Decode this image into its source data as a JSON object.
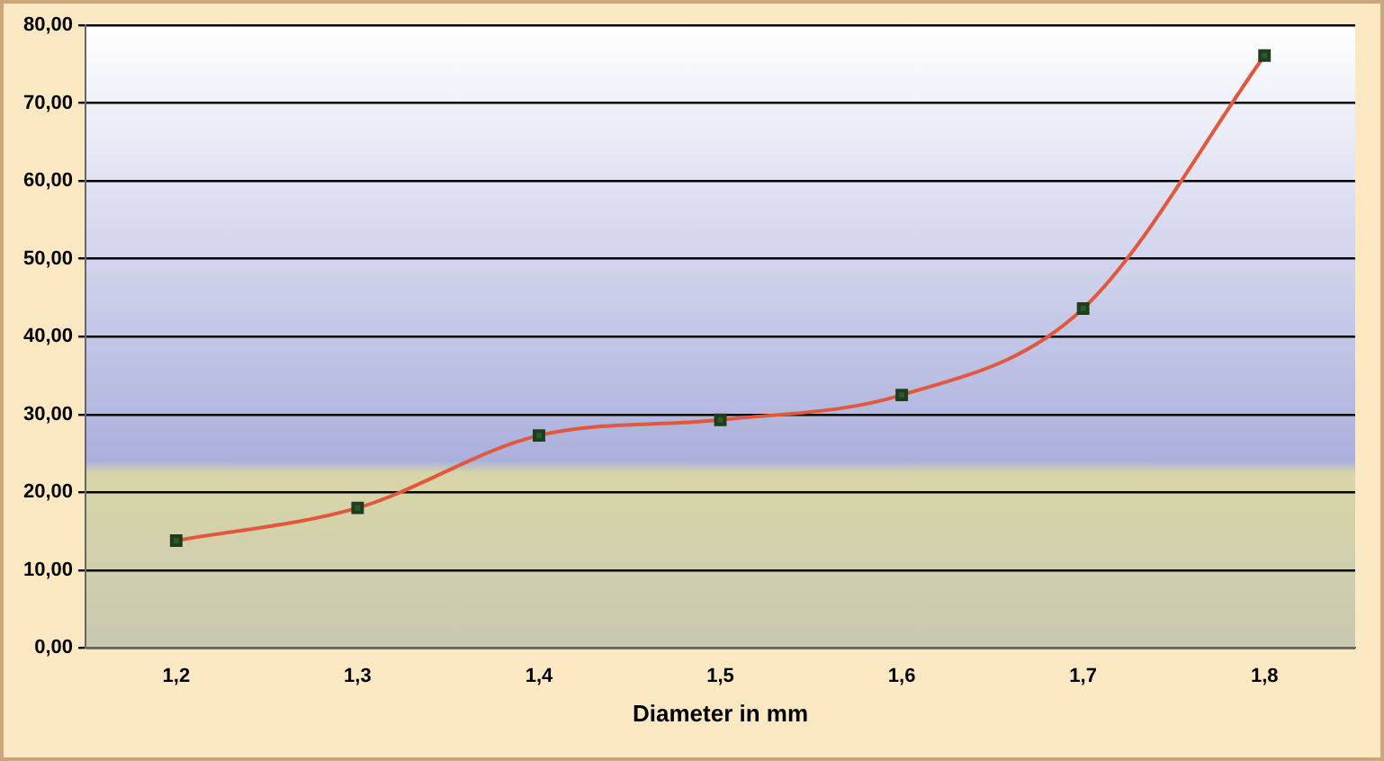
{
  "chart_data": {
    "type": "line",
    "xlabel": "Diameter in mm",
    "categories": [
      "1,2",
      "1,3",
      "1,4",
      "1,5",
      "1,6",
      "1,7",
      "1,8"
    ],
    "series": [
      {
        "color": "#e2583c",
        "values": [
          13.8,
          18,
          27.3,
          29.3,
          32.5,
          43.6,
          76.1
        ]
      }
    ],
    "ylim": [
      0,
      80
    ],
    "yticks": [
      {
        "value": 0,
        "label": "0,00"
      },
      {
        "value": 10,
        "label": "10,00"
      },
      {
        "value": 20,
        "label": "20,00"
      },
      {
        "value": 30,
        "label": "30,00"
      },
      {
        "value": 40,
        "label": "40,00"
      },
      {
        "value": 50,
        "label": "50,00"
      },
      {
        "value": 60,
        "label": "60,00"
      },
      {
        "value": 70,
        "label": "70,00"
      },
      {
        "value": 80,
        "label": "80,00"
      }
    ],
    "grid": "y",
    "legend": false,
    "marker": "square",
    "line_style": "solid"
  }
}
